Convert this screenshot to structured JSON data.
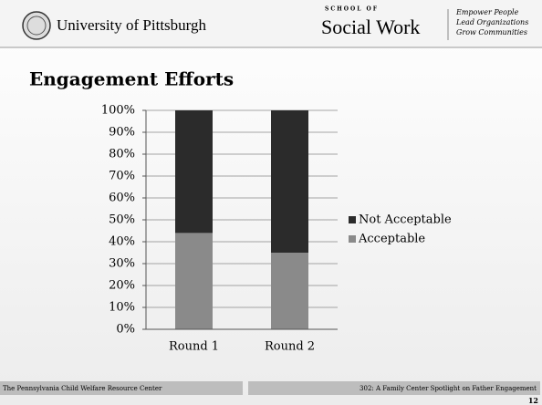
{
  "header": {
    "university": "University of Pittsburgh",
    "school_small": "SCHOOL OF",
    "school": "Social Work",
    "tagline": [
      "Empower People",
      "Lead Organizations",
      "Grow Communities"
    ]
  },
  "chart_data": {
    "type": "bar",
    "stacked": true,
    "title": "Engagement Efforts",
    "categories": [
      "Round 1",
      "Round 2"
    ],
    "series": [
      {
        "name": "Acceptable",
        "color": "#8a8a8a",
        "values": [
          44,
          35
        ]
      },
      {
        "name": "Not Acceptable",
        "color": "#2b2b2b",
        "values": [
          56,
          65
        ]
      }
    ],
    "ylim": [
      0,
      100
    ],
    "yticks": [
      {
        "value": 0,
        "label": "0%"
      },
      {
        "value": 10,
        "label": "10%"
      },
      {
        "value": 20,
        "label": "20%"
      },
      {
        "value": 30,
        "label": "30%"
      },
      {
        "value": 40,
        "label": "40%"
      },
      {
        "value": 50,
        "label": "50%"
      },
      {
        "value": 60,
        "label": "60%"
      },
      {
        "value": 70,
        "label": "70%"
      },
      {
        "value": 80,
        "label": "80%"
      },
      {
        "value": 90,
        "label": "90%"
      },
      {
        "value": 100,
        "label": "100%"
      }
    ],
    "grid": true,
    "legend": "right"
  },
  "footer": {
    "left": "The Pennsylvania Child Welfare Resource Center",
    "right": "302: A Family Center Spotlight on Father Engagement",
    "page": "12"
  }
}
